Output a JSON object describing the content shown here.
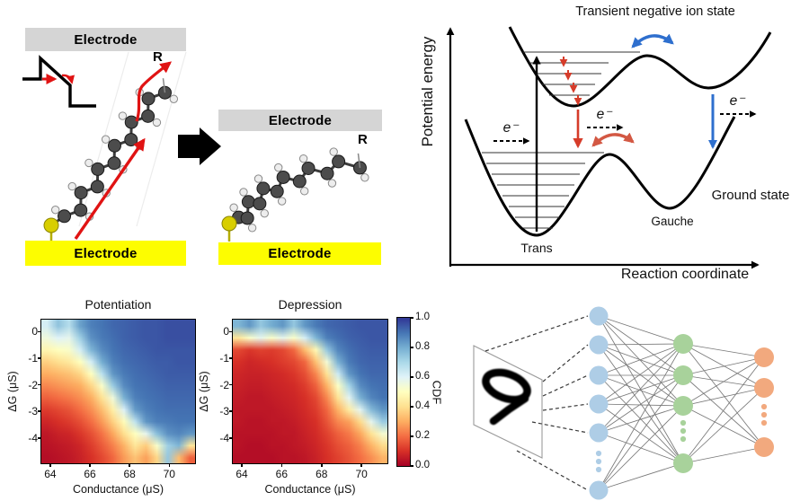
{
  "molecular_panel": {
    "electrode_label_top_left": "Electrode",
    "electrode_label_bottom_left": "Electrode",
    "electrode_label_top_right": "Electrode",
    "electrode_label_bottom_right": "Electrode",
    "substituent_label_left": "R",
    "substituent_label_right": "R",
    "colors": {
      "electrode_top": "#d5d5d5",
      "electrode_bottom": "#fdfd00",
      "arrow_red": "#e01313",
      "carbon": "#4c4c4c",
      "hydrogen": "#ededed",
      "sulfur": "#d8ce00",
      "transition_arrow": "#000000"
    }
  },
  "energy_panel": {
    "title": "Transient negative ion state",
    "ylabel": "Potential energy",
    "xlabel": "Reaction coordinate",
    "trans_label": "Trans",
    "gauche_label": "Gauche",
    "ground_state_label": "Ground state",
    "electron_label": "e⁻",
    "colors": {
      "curve": "#000000",
      "red_arrow": "#d63c2a",
      "red_curve": "#d35843",
      "blue": "#2e6fce"
    }
  },
  "chart_data": [
    {
      "type": "heatmap",
      "title": "Potentiation",
      "xlabel": "Conductance (μS)",
      "ylabel": "ΔG (μS)",
      "xlim": [
        63.55,
        71.3
      ],
      "ylim": [
        -4.95,
        0.45
      ],
      "xticks": [
        64,
        66,
        68,
        70
      ],
      "yticks": [
        0,
        -1,
        -2,
        -3,
        -4
      ],
      "xtick_labels": [
        "64",
        "66",
        "68",
        "70"
      ],
      "ytick_labels": [
        "0",
        "-1",
        "-2",
        "-3",
        "-4"
      ],
      "x_values": [
        63.6,
        64.2,
        64.8,
        65.4,
        66.0,
        66.5,
        67.1,
        67.7,
        68.3,
        68.9,
        69.5,
        70.1,
        70.7,
        71.3
      ],
      "y_values": [
        0.45,
        -0.04,
        -0.53,
        -1.02,
        -1.51,
        -2.0,
        -2.49,
        -2.98,
        -3.47,
        -3.96,
        -4.46,
        -4.95
      ],
      "cdf_grid": [
        [
          0.62,
          0.75,
          0.68,
          0.82,
          0.88,
          0.9,
          0.92,
          0.93,
          0.94,
          0.95,
          0.95,
          0.96,
          0.96,
          0.96
        ],
        [
          0.55,
          0.6,
          0.58,
          0.72,
          0.85,
          0.89,
          0.91,
          0.93,
          0.94,
          0.95,
          0.95,
          0.96,
          0.96,
          0.96
        ],
        [
          0.47,
          0.5,
          0.52,
          0.62,
          0.78,
          0.86,
          0.9,
          0.92,
          0.93,
          0.94,
          0.95,
          0.95,
          0.95,
          0.95
        ],
        [
          0.37,
          0.4,
          0.43,
          0.5,
          0.62,
          0.8,
          0.88,
          0.91,
          0.92,
          0.93,
          0.94,
          0.94,
          0.95,
          0.95
        ],
        [
          0.3,
          0.32,
          0.34,
          0.38,
          0.5,
          0.67,
          0.84,
          0.89,
          0.91,
          0.92,
          0.93,
          0.94,
          0.94,
          0.94
        ],
        [
          0.24,
          0.26,
          0.28,
          0.3,
          0.38,
          0.52,
          0.73,
          0.86,
          0.9,
          0.91,
          0.92,
          0.93,
          0.93,
          0.93
        ],
        [
          0.18,
          0.2,
          0.22,
          0.25,
          0.3,
          0.41,
          0.55,
          0.79,
          0.88,
          0.9,
          0.91,
          0.92,
          0.92,
          0.92
        ],
        [
          0.12,
          0.14,
          0.16,
          0.2,
          0.25,
          0.33,
          0.45,
          0.61,
          0.83,
          0.88,
          0.9,
          0.91,
          0.91,
          0.91
        ],
        [
          0.08,
          0.1,
          0.12,
          0.15,
          0.2,
          0.27,
          0.37,
          0.49,
          0.66,
          0.84,
          0.88,
          0.89,
          0.9,
          0.9
        ],
        [
          0.05,
          0.07,
          0.08,
          0.11,
          0.15,
          0.21,
          0.29,
          0.4,
          0.5,
          0.58,
          0.76,
          0.85,
          0.87,
          0.84
        ],
        [
          0.04,
          0.05,
          0.06,
          0.08,
          0.12,
          0.17,
          0.23,
          0.31,
          0.42,
          0.36,
          0.52,
          0.72,
          0.78,
          0.42
        ],
        [
          0.03,
          0.04,
          0.05,
          0.07,
          0.1,
          0.14,
          0.19,
          0.27,
          0.34,
          0.28,
          0.38,
          0.74,
          0.33,
          0.18
        ]
      ]
    },
    {
      "type": "heatmap",
      "title": "Depression",
      "xlabel": "Conductance (μS)",
      "ylabel": "ΔG (μS)",
      "xlim": [
        63.55,
        71.3
      ],
      "ylim": [
        -4.95,
        0.45
      ],
      "xticks": [
        64,
        66,
        68,
        70
      ],
      "yticks": [
        0,
        -1,
        -2,
        -3,
        -4
      ],
      "xtick_labels": [
        "64",
        "66",
        "68",
        "70"
      ],
      "ytick_labels": [
        "0",
        "-1",
        "-2",
        "-3",
        "-4"
      ],
      "x_values": [
        63.6,
        64.2,
        64.8,
        65.4,
        66.0,
        66.5,
        67.1,
        67.7,
        68.3,
        68.9,
        69.5,
        70.1,
        70.7,
        71.3
      ],
      "y_values": [
        0.45,
        -0.04,
        -0.53,
        -1.02,
        -1.51,
        -2.0,
        -2.49,
        -2.98,
        -3.47,
        -3.96,
        -4.46,
        -4.95
      ],
      "cdf_grid": [
        [
          0.78,
          0.84,
          0.74,
          0.8,
          0.84,
          0.74,
          0.84,
          0.89,
          0.92,
          0.93,
          0.94,
          0.95,
          0.95,
          0.95
        ],
        [
          0.42,
          0.52,
          0.58,
          0.52,
          0.58,
          0.52,
          0.62,
          0.78,
          0.88,
          0.91,
          0.93,
          0.94,
          0.95,
          0.95
        ],
        [
          0.14,
          0.11,
          0.13,
          0.12,
          0.14,
          0.19,
          0.33,
          0.48,
          0.74,
          0.87,
          0.91,
          0.93,
          0.94,
          0.94
        ],
        [
          0.1,
          0.08,
          0.09,
          0.1,
          0.12,
          0.14,
          0.19,
          0.34,
          0.54,
          0.79,
          0.89,
          0.92,
          0.93,
          0.93
        ],
        [
          0.08,
          0.07,
          0.07,
          0.08,
          0.09,
          0.11,
          0.15,
          0.24,
          0.41,
          0.64,
          0.84,
          0.9,
          0.92,
          0.92
        ],
        [
          0.07,
          0.06,
          0.06,
          0.07,
          0.08,
          0.09,
          0.12,
          0.18,
          0.31,
          0.51,
          0.71,
          0.86,
          0.9,
          0.91
        ],
        [
          0.06,
          0.05,
          0.05,
          0.06,
          0.07,
          0.08,
          0.1,
          0.14,
          0.24,
          0.41,
          0.59,
          0.79,
          0.87,
          0.9
        ],
        [
          0.05,
          0.05,
          0.05,
          0.05,
          0.06,
          0.07,
          0.09,
          0.12,
          0.19,
          0.31,
          0.44,
          0.59,
          0.77,
          0.84
        ],
        [
          0.05,
          0.04,
          0.04,
          0.05,
          0.05,
          0.06,
          0.08,
          0.1,
          0.16,
          0.24,
          0.28,
          0.39,
          0.58,
          0.73
        ],
        [
          0.04,
          0.04,
          0.04,
          0.04,
          0.05,
          0.05,
          0.07,
          0.09,
          0.13,
          0.18,
          0.22,
          0.29,
          0.41,
          0.53
        ],
        [
          0.04,
          0.03,
          0.03,
          0.04,
          0.04,
          0.05,
          0.06,
          0.08,
          0.11,
          0.15,
          0.18,
          0.23,
          0.31,
          0.39
        ],
        [
          0.03,
          0.03,
          0.03,
          0.03,
          0.04,
          0.04,
          0.05,
          0.07,
          0.1,
          0.13,
          0.16,
          0.2,
          0.25,
          0.31
        ]
      ]
    }
  ],
  "colorbar": {
    "label": "CDF",
    "tick_labels": [
      "1.0",
      "0.8",
      "0.6",
      "0.4",
      "0.2",
      "0.0"
    ],
    "tick_values": [
      1.0,
      0.8,
      0.6,
      0.4,
      0.2,
      0.0
    ],
    "colormap": [
      {
        "t": 0.0,
        "c": "#a50026"
      },
      {
        "t": 0.1,
        "c": "#d73027"
      },
      {
        "t": 0.2,
        "c": "#f46d43"
      },
      {
        "t": 0.3,
        "c": "#fdae61"
      },
      {
        "t": 0.4,
        "c": "#fee090"
      },
      {
        "t": 0.5,
        "c": "#ffffbf"
      },
      {
        "t": 0.6,
        "c": "#e0f3f8"
      },
      {
        "t": 0.7,
        "c": "#abd9e9"
      },
      {
        "t": 0.8,
        "c": "#74add1"
      },
      {
        "t": 0.9,
        "c": "#4575b4"
      },
      {
        "t": 1.0,
        "c": "#313695"
      }
    ]
  },
  "network_panel": {
    "digit": "9",
    "input_color": "#aecde6",
    "hidden_color": "#a8d29b",
    "output_color": "#f2a97e",
    "edge_color": "#787878",
    "dashed_line_color": "#3a3a3a"
  }
}
